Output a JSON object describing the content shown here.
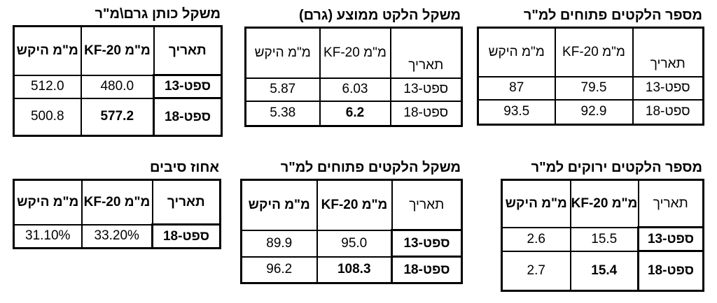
{
  "tables": [
    {
      "title": "משקל כותן גרם\\מ\"ר",
      "headers": [
        "מ\"מ היקש",
        "מ\"מ KF-20",
        "תאריך"
      ],
      "rows": [
        {
          "v1": "512.0",
          "v2": "480.0",
          "date": "13-ספט"
        },
        {
          "v1": "500.8",
          "v2": "577.2",
          "date": "18-ספט"
        }
      ]
    },
    {
      "title": "משקל הלקט ממוצע (גרם)",
      "headers": [
        "מ\"מ היקש",
        "מ\"מ KF-20",
        "תאריך"
      ],
      "rows": [
        {
          "v1": "5.87",
          "v2": "6.03",
          "date": "13-ספט"
        },
        {
          "v1": "5.38",
          "v2": "6.2",
          "date": "18-ספט"
        }
      ]
    },
    {
      "title": "מספר הלקטים פתוחים למ\"ר",
      "headers": [
        "מ\"מ היקש",
        "מ\"מ KF-20",
        "תאריך"
      ],
      "rows": [
        {
          "v1": "87",
          "v2": "79.5",
          "date": "13-ספט"
        },
        {
          "v1": "93.5",
          "v2": "92.9",
          "date": "18-ספט"
        }
      ]
    },
    {
      "title": "אחוז סיבים",
      "headers": [
        "מ\"מ היקש",
        "מ\"מ KF-20",
        "תאריך"
      ],
      "rows": [
        {
          "v1": "31.10%",
          "v2": "33.20%",
          "date": "18-ספט"
        }
      ]
    },
    {
      "title": "משקל הלקטים פתוחים למ\"ר",
      "headers": [
        "מ\"מ היקש",
        "מ\"מ KF-20",
        "תאריך"
      ],
      "rows": [
        {
          "v1": "89.9",
          "v2": "95.0",
          "date": "13-ספט"
        },
        {
          "v1": "96.2",
          "v2": "108.3",
          "date": "18-ספט"
        }
      ]
    },
    {
      "title": "מספר הלקטים ירוקים למ\"ר",
      "headers": [
        "מ\"מ היקש",
        "מ\"מ KF-20",
        "תאריך"
      ],
      "rows": [
        {
          "v1": "2.6",
          "v2": "15.5",
          "date": "13-ספט"
        },
        {
          "v1": "2.7",
          "v2": "15.4",
          "date": "18-ספט"
        }
      ]
    }
  ]
}
